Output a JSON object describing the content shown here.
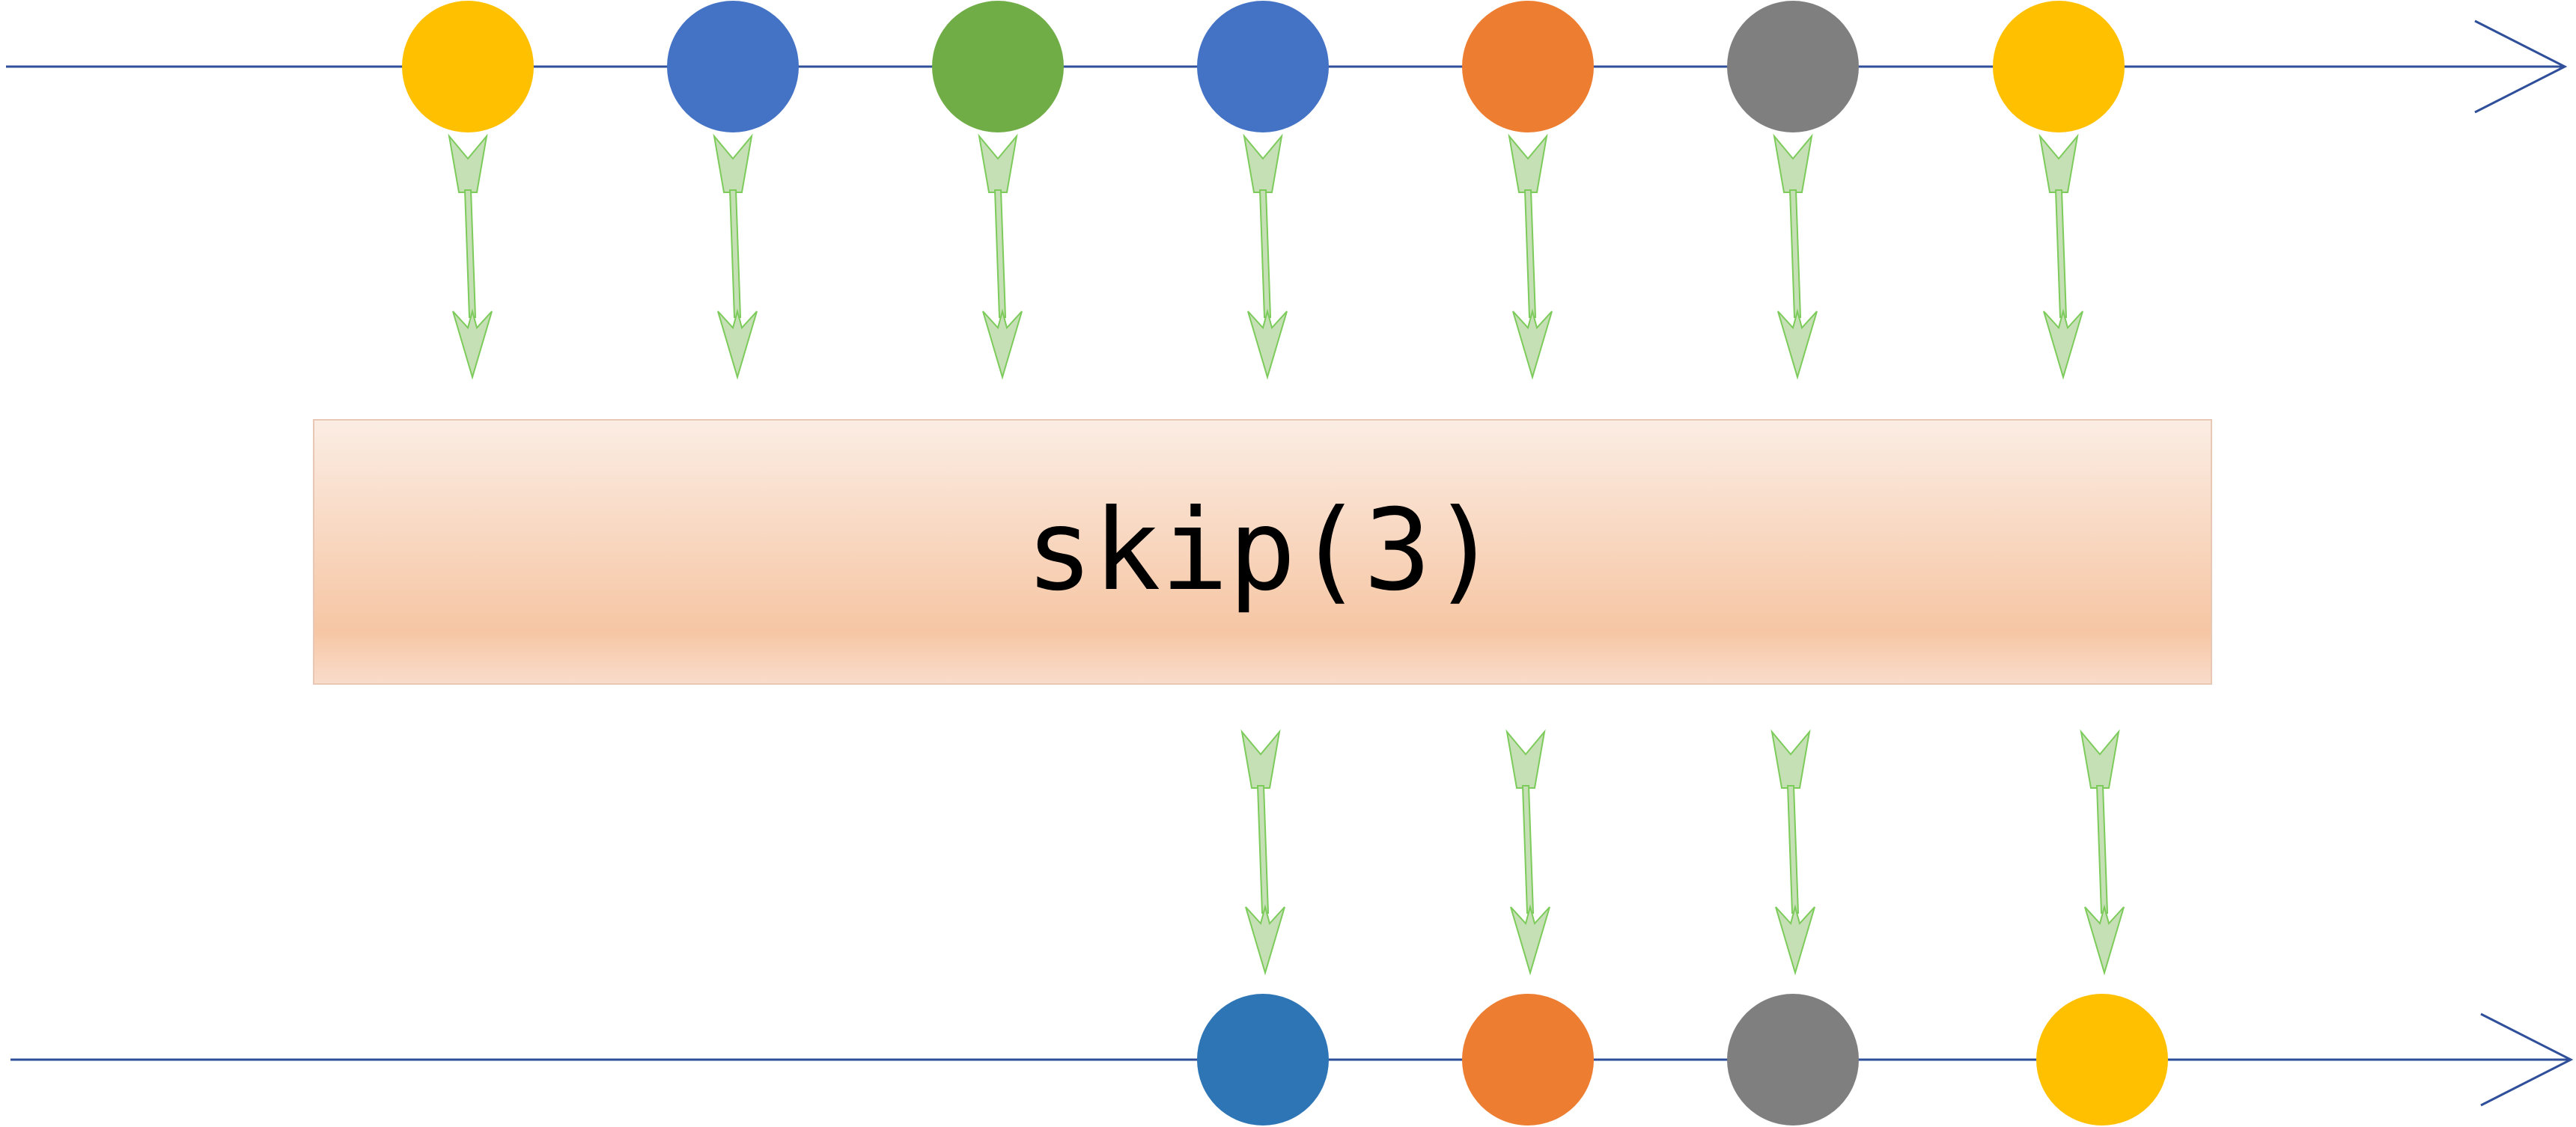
{
  "operator": {
    "label": "skip(3)"
  },
  "colors": {
    "timeline": "#2F4F9A",
    "arrow_fill": "#C5E0B4",
    "arrow_stroke": "#7CCB5B",
    "operator_gradient_top": "#FBEDE4",
    "operator_gradient_bottom": "#F6C6A4",
    "yellow": "#FFC000",
    "blue": "#4472C4",
    "steel_blue": "#2E75B6",
    "green": "#70AD47",
    "orange": "#ED7D31",
    "gray": "#7F7F7F"
  },
  "input_stream": {
    "marbles": [
      {
        "color_key": "yellow"
      },
      {
        "color_key": "blue"
      },
      {
        "color_key": "green"
      },
      {
        "color_key": "blue"
      },
      {
        "color_key": "orange"
      },
      {
        "color_key": "gray"
      },
      {
        "color_key": "yellow"
      }
    ]
  },
  "output_stream": {
    "marbles": [
      {
        "color_key": "steel_blue"
      },
      {
        "color_key": "orange"
      },
      {
        "color_key": "gray"
      },
      {
        "color_key": "yellow"
      }
    ]
  }
}
